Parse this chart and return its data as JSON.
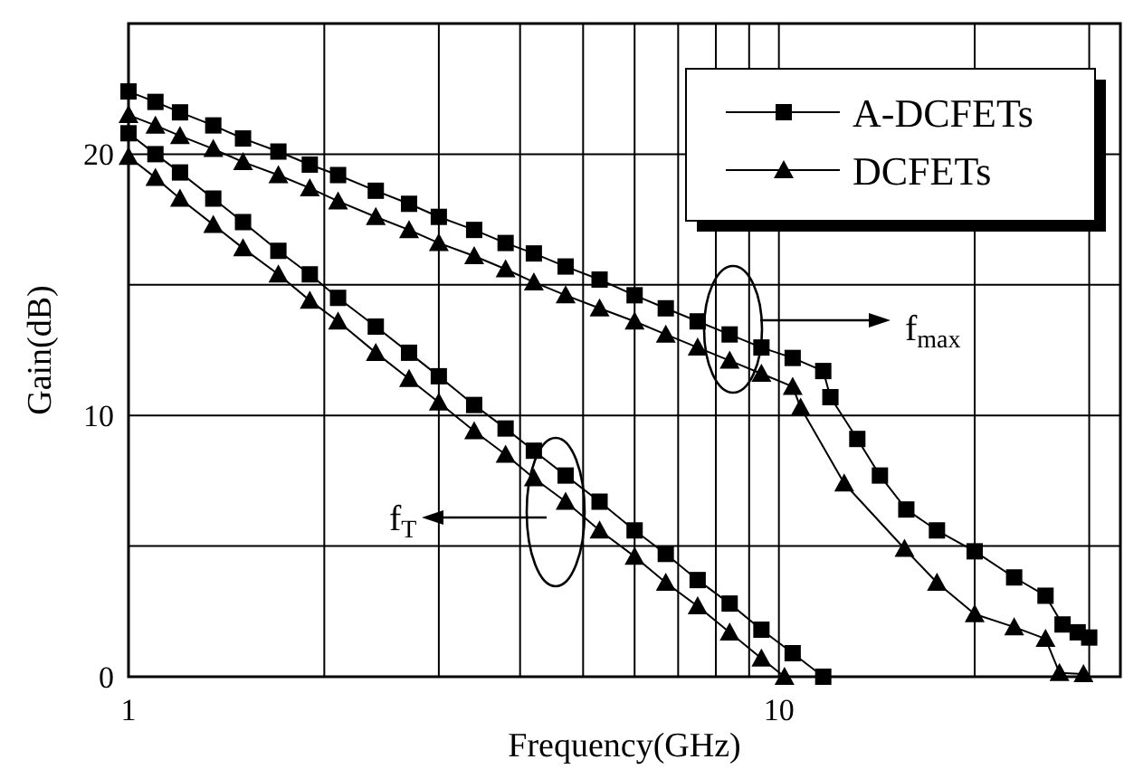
{
  "chart_data": {
    "type": "line",
    "xlabel": "Frequency(GHz)",
    "ylabel": "Gain(dB)",
    "log": "x",
    "xlim": [
      1,
      33.5
    ],
    "ylim": [
      0,
      25
    ],
    "xticks": [
      1,
      {
        "value": 2,
        "label": null
      },
      {
        "value": 3,
        "label": null
      },
      {
        "value": 4,
        "label": null
      },
      {
        "value": 5,
        "label": null
      },
      {
        "value": 6,
        "label": null
      },
      {
        "value": 7,
        "label": null
      },
      {
        "value": 8,
        "label": null
      },
      {
        "value": 9,
        "label": null
      },
      10,
      {
        "value": 20,
        "label": null
      },
      {
        "value": 30,
        "label": null
      }
    ],
    "yticks": [
      0,
      {
        "value": 5,
        "label": null
      },
      10,
      {
        "value": 15,
        "label": null
      },
      20,
      {
        "value": 25,
        "label": null
      }
    ],
    "grid": true,
    "legend": "top right",
    "line_style": "solid",
    "annotations": [
      "f$_{max}$",
      "f$_{T}$"
    ],
    "series": [
      {
        "name": "A-DCFETs",
        "color": "#000000",
        "marker": "square",
        "x": [
          1,
          1.1,
          1.2,
          1.35,
          1.5,
          1.7,
          1.9,
          2.1,
          2.4,
          2.7,
          3,
          3.4,
          3.8,
          4.2,
          4.7,
          5.3,
          6,
          6.7,
          7.5,
          8.4,
          9.4,
          10.5,
          11.7,
          12,
          13.2,
          14.3,
          15.7,
          17.5,
          20,
          23,
          25.7,
          27.3,
          28.8,
          30
        ],
        "values": [
          22.4,
          22.0,
          21.6,
          21.1,
          20.6,
          20.1,
          19.6,
          19.2,
          18.6,
          18.1,
          17.6,
          17.1,
          16.6,
          16.2,
          15.7,
          15.2,
          14.6,
          14.1,
          13.6,
          13.1,
          12.6,
          12.2,
          11.7,
          10.7,
          9.1,
          7.7,
          6.4,
          5.6,
          4.8,
          3.8,
          3.1,
          2.0,
          1.7,
          1.5
        ]
      },
      {
        "name": "DCFETs",
        "color": "#000000",
        "marker": "triangle",
        "x": [
          1,
          1.1,
          1.2,
          1.35,
          1.5,
          1.7,
          1.9,
          2.1,
          2.4,
          2.7,
          3,
          3.4,
          3.8,
          4.2,
          4.7,
          5.3,
          6,
          6.7,
          7.5,
          8.4,
          9.4,
          10.5,
          10.8,
          12.6,
          15.6,
          17.5,
          20,
          23,
          25.7,
          27,
          29.4
        ],
        "values": [
          21.5,
          21.1,
          20.7,
          20.2,
          19.7,
          19.2,
          18.7,
          18.2,
          17.6,
          17.1,
          16.6,
          16.1,
          15.6,
          15.1,
          14.6,
          14.1,
          13.6,
          13.1,
          12.6,
          12.1,
          11.6,
          11.1,
          10.3,
          7.4,
          4.9,
          3.6,
          2.4,
          1.9,
          1.45,
          0.15,
          0.1
        ]
      },
      {
        "color": "#000000",
        "marker": "square",
        "x": [
          1,
          1.1,
          1.2,
          1.35,
          1.5,
          1.7,
          1.9,
          2.1,
          2.4,
          2.7,
          3,
          3.4,
          3.8,
          4.2,
          4.7,
          5.3,
          6,
          6.7,
          7.5,
          8.4,
          9.4,
          10.5,
          11.7
        ],
        "values": [
          20.8,
          20.0,
          19.3,
          18.3,
          17.4,
          16.3,
          15.4,
          14.5,
          13.4,
          12.4,
          11.5,
          10.4,
          9.5,
          8.65,
          7.7,
          6.7,
          5.6,
          4.7,
          3.7,
          2.8,
          1.8,
          0.9,
          0.0
        ]
      },
      {
        "color": "#000000",
        "marker": "triangle",
        "x": [
          1,
          1.1,
          1.2,
          1.35,
          1.5,
          1.7,
          1.9,
          2.1,
          2.4,
          2.7,
          3,
          3.4,
          3.8,
          4.2,
          4.7,
          5.3,
          6,
          6.7,
          7.5,
          8.4,
          9.4,
          10.2
        ],
        "values": [
          19.9,
          19.1,
          18.3,
          17.3,
          16.4,
          15.4,
          14.4,
          13.6,
          12.4,
          11.4,
          10.5,
          9.4,
          8.5,
          7.6,
          6.7,
          5.6,
          4.6,
          3.6,
          2.7,
          1.7,
          0.7,
          0.0
        ]
      }
    ]
  }
}
